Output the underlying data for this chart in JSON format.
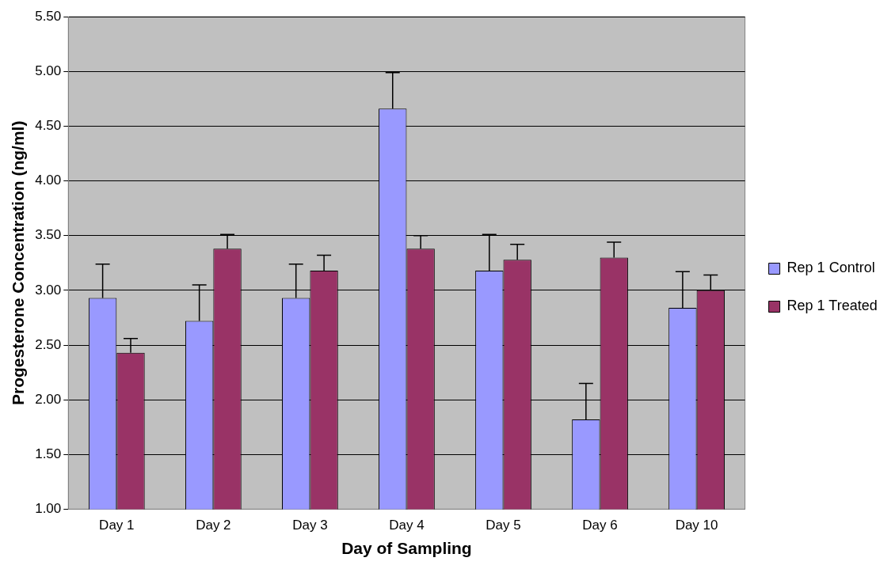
{
  "chart_data": {
    "type": "bar",
    "xlabel": "Day of Sampling",
    "ylabel": "Progesterone Concentration (ng/ml)",
    "categories": [
      "Day 1",
      "Day 2",
      "Day 3",
      "Day 4",
      "Day 5",
      "Day 6",
      "Day 10"
    ],
    "series": [
      {
        "name": "Rep 1 Control",
        "color": "#9999ff",
        "values": [
          2.93,
          2.72,
          2.93,
          4.66,
          3.18,
          1.82,
          2.84
        ],
        "errors": [
          [
            2.93,
            3.24
          ],
          [
            2.72,
            3.05
          ],
          [
            2.93,
            3.24
          ],
          [
            4.66,
            4.99
          ],
          [
            3.18,
            3.51
          ],
          [
            1.82,
            2.15
          ],
          [
            2.84,
            3.17
          ]
        ]
      },
      {
        "name": "Rep 1 Treated",
        "color": "#993366",
        "values": [
          2.43,
          3.38,
          3.18,
          3.38,
          3.28,
          3.3,
          3.0
        ],
        "errors": [
          [
            2.43,
            2.56
          ],
          [
            3.38,
            3.51
          ],
          [
            3.18,
            3.32
          ],
          [
            3.38,
            3.5
          ],
          [
            3.28,
            3.42
          ],
          [
            3.3,
            3.44
          ],
          [
            3.0,
            3.14
          ]
        ]
      }
    ],
    "ylim": [
      1,
      5.5
    ],
    "yticks": [
      {
        "value": 1,
        "label": "1.00"
      },
      {
        "value": 1.5,
        "label": "1.50"
      },
      {
        "value": 2,
        "label": "2.00"
      },
      {
        "value": 2.5,
        "label": "2.50"
      },
      {
        "value": 3,
        "label": "3.00"
      },
      {
        "value": 3.5,
        "label": "3.50"
      },
      {
        "value": 4,
        "label": "4.00"
      },
      {
        "value": 4.5,
        "label": "4.50"
      },
      {
        "value": 5,
        "label": "5.00"
      },
      {
        "value": 5.5,
        "label": "5.50"
      }
    ],
    "grid": "y",
    "legend": "right"
  }
}
